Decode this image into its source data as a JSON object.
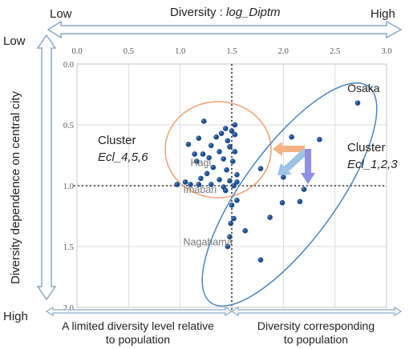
{
  "labels": {
    "top_low": "Low",
    "top_high": "High",
    "top_axis_prefix": "Diversity : ",
    "top_axis_var": "log_Diptm",
    "left_low": "Low",
    "left_high": "High",
    "left_axis": "Diversity dependence on central city",
    "bottom_left_line1": "A limited diversity level relative",
    "bottom_left_line2": "to population",
    "bottom_right_line1": "Diversity corresponding",
    "bottom_right_line2": "to population",
    "cluster_left_title": "Cluster",
    "cluster_left_name": "Ecl_4,5,6",
    "cluster_right_title": "Cluster",
    "cluster_right_name": "Ecl_1,2,3"
  },
  "colors": {
    "point": "#1f4e8c",
    "point_highlight": "#5b8fd0",
    "ellipse_left": "#f0a070",
    "ellipse_right": "#4a86c0",
    "arrow_orange": "#f4b183",
    "arrow_blue": "#9dc3e6",
    "arrow_purple": "#8f8fe8",
    "frame_arrow": "#8aa8c8"
  },
  "chart_data": {
    "type": "scatter",
    "xlim": [
      0.0,
      3.0
    ],
    "ylim": [
      0.0,
      2.0
    ],
    "y_inverted": true,
    "x_axis_position": "top",
    "x_ticks": [
      "0.0",
      "0.5",
      "1.0",
      "1.5",
      "2.0",
      "2.5",
      "3.0"
    ],
    "y_ticks": [
      "0.0",
      "0.5",
      "1.0",
      "1.5",
      "2.0"
    ],
    "grid": true,
    "reference_lines": {
      "x": 1.5,
      "y": 1.0
    },
    "points": [
      [
        1.23,
        0.47
      ],
      [
        1.44,
        0.53
      ],
      [
        1.5,
        0.55
      ],
      [
        1.53,
        0.5
      ],
      [
        1.4,
        0.57
      ],
      [
        1.35,
        0.6
      ],
      [
        1.53,
        0.58
      ],
      [
        1.18,
        0.61
      ],
      [
        1.46,
        0.63
      ],
      [
        1.08,
        0.66
      ],
      [
        1.3,
        0.67
      ],
      [
        1.48,
        0.68
      ],
      [
        1.38,
        0.72
      ],
      [
        1.22,
        0.74
      ],
      [
        1.53,
        0.72
      ],
      [
        1.28,
        0.77
      ],
      [
        1.42,
        0.78
      ],
      [
        1.16,
        0.8
      ],
      [
        1.51,
        0.8
      ],
      [
        1.32,
        0.85
      ],
      [
        1.45,
        0.87
      ],
      [
        1.26,
        0.9
      ],
      [
        1.55,
        0.91
      ],
      [
        1.2,
        0.94
      ],
      [
        1.38,
        0.95
      ],
      [
        1.05,
        0.97
      ],
      [
        1.48,
        0.96
      ],
      [
        1.3,
        0.99
      ],
      [
        1.18,
        0.99
      ],
      [
        1.1,
        0.99
      ],
      [
        0.97,
        0.99
      ],
      [
        1.42,
        1.01
      ],
      [
        1.52,
        1.0
      ],
      [
        1.44,
        1.04
      ],
      [
        1.55,
        0.97
      ],
      [
        1.78,
        0.86
      ],
      [
        2.08,
        0.6
      ],
      [
        2.35,
        0.62
      ],
      [
        2.0,
        0.93
      ],
      [
        2.2,
        1.03
      ],
      [
        2.16,
        1.13
      ],
      [
        1.99,
        1.14
      ],
      [
        1.55,
        1.12
      ],
      [
        1.5,
        1.16
      ],
      [
        1.52,
        1.27
      ],
      [
        1.49,
        1.31
      ],
      [
        1.63,
        1.37
      ],
      [
        1.87,
        1.26
      ],
      [
        1.48,
        1.42
      ],
      [
        1.46,
        1.5
      ],
      [
        1.78,
        1.61
      ],
      [
        2.72,
        0.32
      ],
      [
        1.14,
        0.74
      ]
    ],
    "annotations": [
      {
        "text": "Osaka",
        "x": 2.62,
        "y": 0.23
      },
      {
        "text": "Hagi",
        "x": 1.1,
        "y": 0.84
      },
      {
        "text": "Imabari",
        "x": 1.03,
        "y": 1.06
      },
      {
        "text": "Nagahama",
        "x": 1.03,
        "y": 1.49
      }
    ]
  }
}
